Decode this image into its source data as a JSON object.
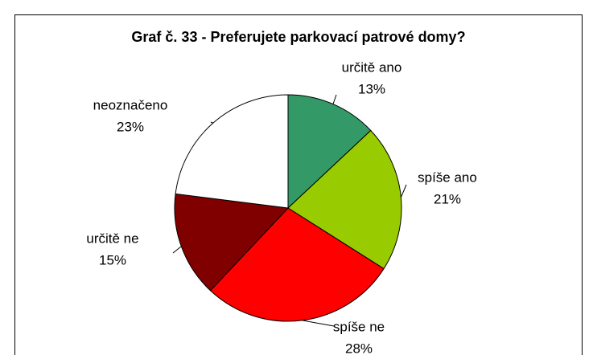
{
  "chart_data": {
    "type": "pie",
    "title": "Graf č. 33 - Preferujete parkovací patrové domy?",
    "categories": [
      "určitě ano",
      "spíše ano",
      "spíše ne",
      "určitě ne",
      "neoznačeno"
    ],
    "values": [
      13,
      21,
      28,
      15,
      23
    ],
    "value_labels": [
      "13%",
      "21%",
      "28%",
      "15%",
      "23%"
    ],
    "colors": [
      "#339966",
      "#99cc00",
      "#ff0000",
      "#800000",
      "#ffffff"
    ]
  }
}
